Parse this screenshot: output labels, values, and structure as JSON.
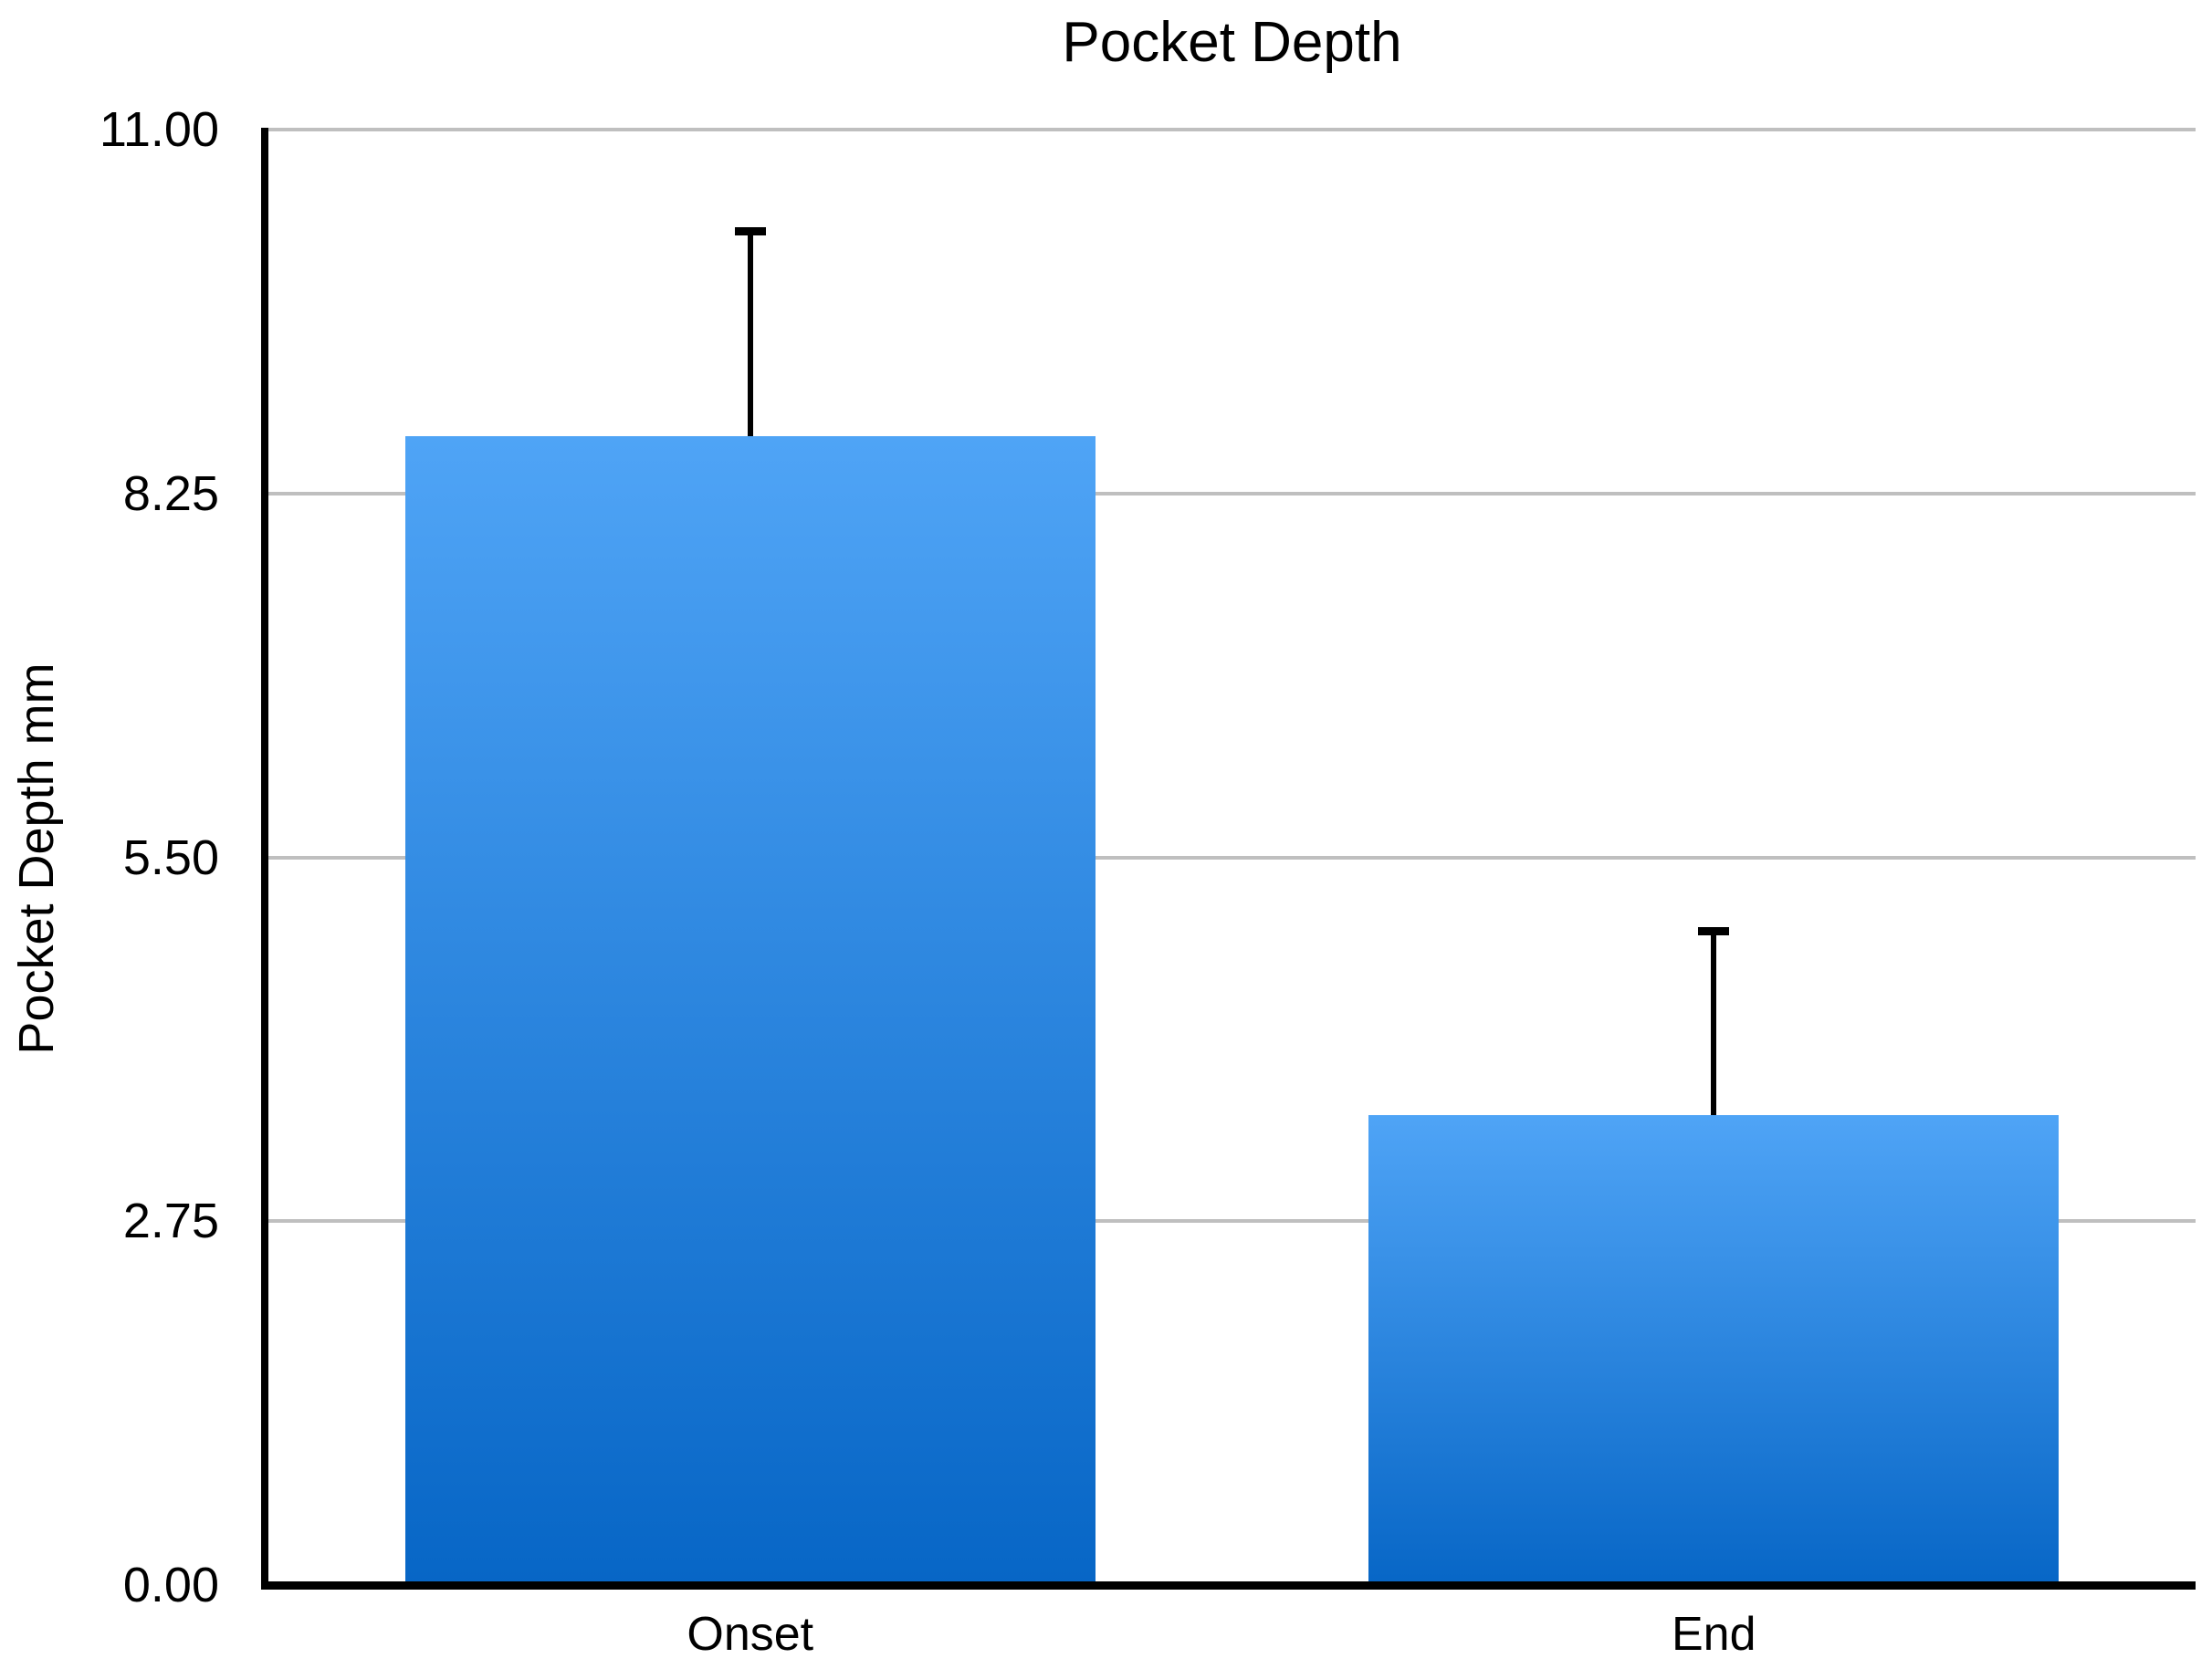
{
  "chart_data": {
    "type": "bar",
    "title": "Pocket Depth",
    "xlabel": "",
    "ylabel": "Pocket Depth mm",
    "categories": [
      "Onset",
      "End"
    ],
    "series": [
      {
        "name": "Pocket Depth",
        "values": [
          8.68,
          3.55
        ],
        "errors_plus": [
          1.58,
          1.42
        ]
      }
    ],
    "ylim": [
      0,
      11
    ],
    "ytick_values": [
      11,
      8.25,
      5.5,
      2.75,
      0
    ],
    "ytick_labels": [
      "11.00",
      "8.25",
      "5.50",
      "2.75",
      "0.00"
    ],
    "grid": true,
    "legend": "none",
    "colors": {
      "bar_gradient_top": "#4FA4F6",
      "bar_gradient_bottom": "#0766C6",
      "gridline": "#BFBFBF",
      "axis": "#000000",
      "text": "#000000",
      "background": "#FFFFFF"
    }
  }
}
